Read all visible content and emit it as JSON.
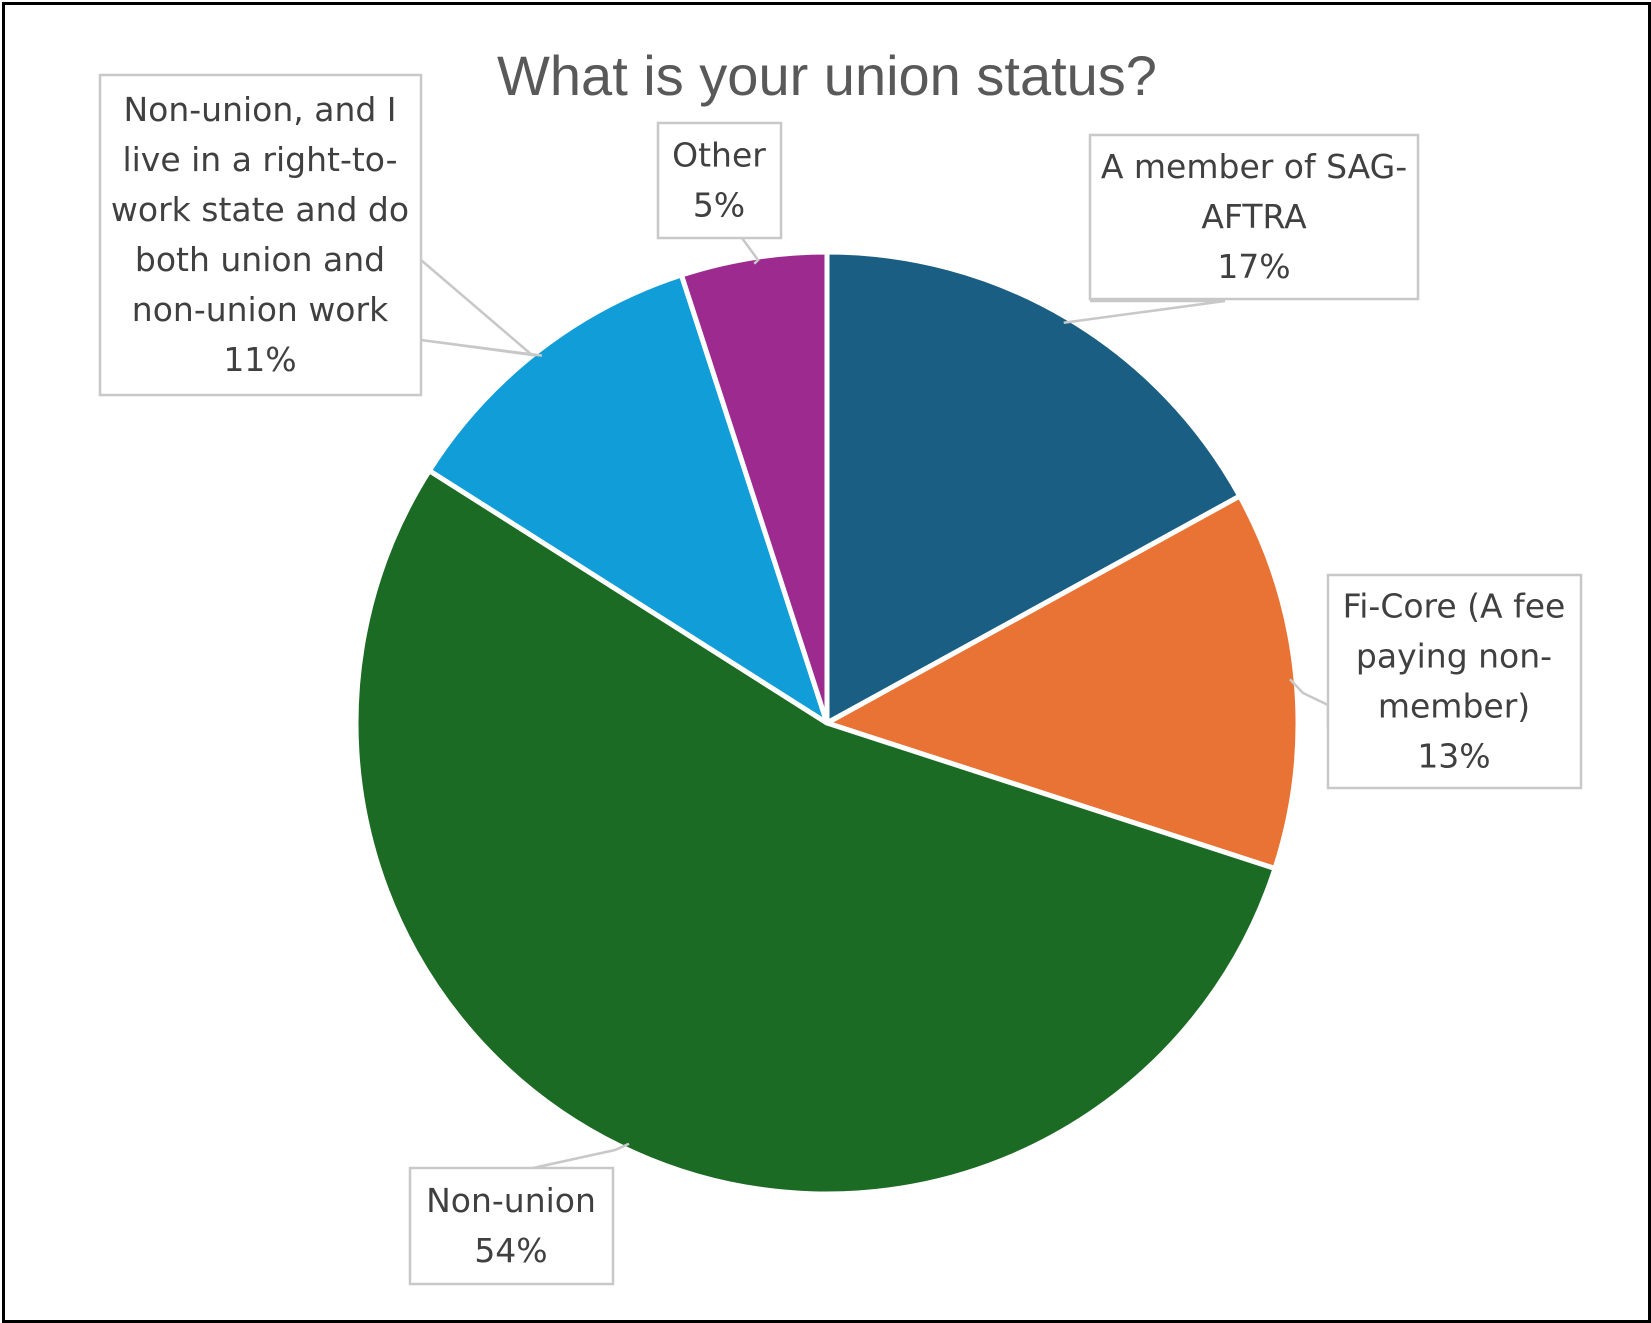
{
  "chart_data": {
    "type": "pie",
    "title": "What is your union status?",
    "slices": [
      {
        "label": "A member of SAG-AFTRA",
        "label_lines": [
          "A member of SAG-",
          "AFTRA"
        ],
        "value": 17,
        "value_label": "17%",
        "color": "#1a5f83"
      },
      {
        "label": "Fi-Core (A fee paying non-member)",
        "label_lines": [
          "Fi-Core (A fee",
          "paying non-",
          "member)"
        ],
        "value": 13,
        "value_label": "13%",
        "color": "#e97334"
      },
      {
        "label": "Non-union",
        "label_lines": [
          "Non-union"
        ],
        "value": 54,
        "value_label": "54%",
        "color": "#1c6b25"
      },
      {
        "label": "Non-union, and I live in a right-to-work state and do both union and non-union work",
        "label_lines": [
          "Non-union, and I",
          "live in a right-to-",
          "work state and do",
          "both union and",
          "non-union work"
        ],
        "value": 11,
        "value_label": "11%",
        "color": "#119dd7"
      },
      {
        "label": "Other",
        "label_lines": [
          "Other"
        ],
        "value": 5,
        "value_label": "5%",
        "color": "#9d2b8f"
      }
    ],
    "start_angle_deg": 0,
    "direction": "clockwise",
    "legend": "none",
    "data_labels": "callouts"
  }
}
